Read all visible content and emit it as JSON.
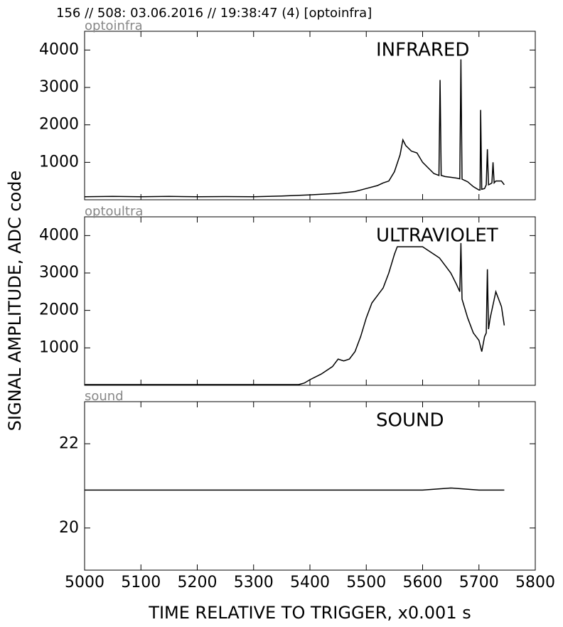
{
  "header": "156 // 508:   03.06.2016 // 19:38:47 (4)  [optoinfra]",
  "ylabel": "SIGNAL AMPLITUDE,  ADC code",
  "xlabel": "TIME RELATIVE TO TRIGGER,   x0.001 s",
  "chart_data": [
    {
      "type": "line",
      "label": "optoinfra",
      "title": "INFRARED",
      "x": [
        5000,
        5050,
        5100,
        5150,
        5200,
        5250,
        5300,
        5350,
        5400,
        5450,
        5480,
        5500,
        5520,
        5530,
        5540,
        5550,
        5560,
        5565,
        5570,
        5580,
        5590,
        5600,
        5610,
        5620,
        5629,
        5631,
        5633,
        5640,
        5650,
        5660,
        5666,
        5668,
        5670,
        5680,
        5690,
        5700,
        5702,
        5703,
        5705,
        5710,
        5713,
        5715,
        5717,
        5720,
        5723,
        5725,
        5727,
        5730,
        5740,
        5745
      ],
      "series": [
        {
          "color": "#000000",
          "values": [
            80,
            90,
            80,
            90,
            80,
            85,
            80,
            100,
            130,
            170,
            220,
            300,
            380,
            450,
            500,
            750,
            1200,
            1600,
            1450,
            1300,
            1250,
            1000,
            850,
            700,
            650,
            3200,
            650,
            620,
            600,
            580,
            560,
            3750,
            550,
            480,
            350,
            260,
            260,
            2400,
            280,
            300,
            400,
            1350,
            400,
            420,
            450,
            1000,
            450,
            500,
            500,
            400
          ]
        }
      ],
      "xlim": [
        5000,
        5800
      ],
      "xticks": [
        5000,
        5100,
        5200,
        5300,
        5400,
        5500,
        5600,
        5700,
        5800
      ],
      "ylim": [
        0,
        4500
      ],
      "yticks": [
        1000,
        2000,
        3000,
        4000
      ]
    },
    {
      "type": "line",
      "label": "optoultra",
      "title": "ULTRAVIOLET",
      "x": [
        5000,
        5100,
        5200,
        5300,
        5380,
        5390,
        5400,
        5420,
        5440,
        5450,
        5460,
        5470,
        5480,
        5490,
        5500,
        5510,
        5520,
        5530,
        5540,
        5550,
        5555,
        5600,
        5610,
        5620,
        5630,
        5640,
        5650,
        5660,
        5666,
        5668,
        5670,
        5680,
        5690,
        5700,
        5705,
        5710,
        5713,
        5715,
        5717,
        5720,
        5730,
        5740,
        5745
      ],
      "series": [
        {
          "color": "#000000",
          "values": [
            20,
            20,
            20,
            20,
            20,
            60,
            150,
            300,
            500,
            700,
            650,
            700,
            900,
            1300,
            1800,
            2200,
            2400,
            2600,
            3000,
            3500,
            3700,
            3700,
            3600,
            3500,
            3400,
            3200,
            3000,
            2700,
            2500,
            3800,
            2300,
            1800,
            1400,
            1200,
            900,
            1300,
            1400,
            3100,
            1500,
            1800,
            2500,
            2100,
            1600
          ]
        }
      ],
      "xlim": [
        5000,
        5800
      ],
      "xticks": [
        5000,
        5100,
        5200,
        5300,
        5400,
        5500,
        5600,
        5700,
        5800
      ],
      "ylim": [
        0,
        4500
      ],
      "yticks": [
        1000,
        2000,
        3000,
        4000
      ]
    },
    {
      "type": "line",
      "label": "sound",
      "title": "SOUND",
      "x": [
        5000,
        5100,
        5200,
        5300,
        5400,
        5500,
        5600,
        5650,
        5700,
        5745
      ],
      "series": [
        {
          "color": "#000000",
          "values": [
            20.9,
            20.9,
            20.9,
            20.9,
            20.9,
            20.9,
            20.9,
            20.95,
            20.9,
            20.9
          ]
        }
      ],
      "xlim": [
        5000,
        5800
      ],
      "xticks": [
        5000,
        5100,
        5200,
        5300,
        5400,
        5500,
        5600,
        5700,
        5800
      ],
      "ylim": [
        19,
        23
      ],
      "yticks": [
        20,
        22
      ]
    }
  ]
}
